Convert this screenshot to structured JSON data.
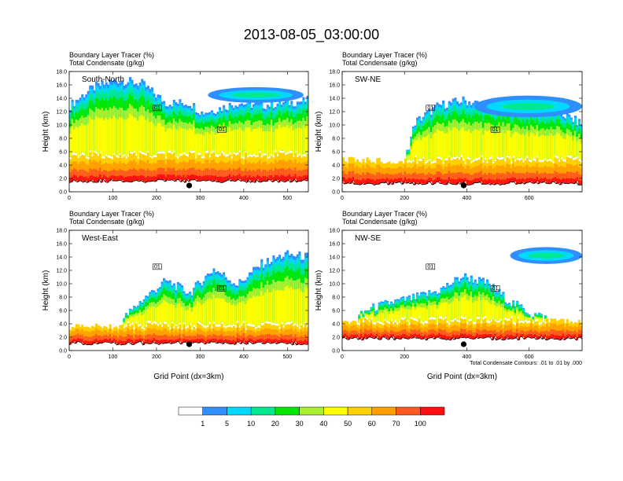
{
  "title": "2013-08-05_03:00:00",
  "chart_data": {
    "type": "heatmap",
    "subtitles": [
      "Boundary Layer Tracer    (%)",
      "Total Condensate    (g/kg)"
    ],
    "ylabel": "Height (km)",
    "xlabel": "Grid Point (dx=3km)",
    "ylim": [
      0,
      18
    ],
    "yticks": [
      "0.0",
      "2.0",
      "4.0",
      "6.0",
      "8.0",
      "10.0",
      "12.0",
      "14.0",
      "16.0",
      "18.0"
    ],
    "contour_note": "Total Condensate Contours: .01 to .01 by .000",
    "contour_label": "01",
    "panels": [
      {
        "name": "South-North",
        "xlim": [
          0,
          548
        ],
        "xticks": [
          0,
          100,
          200,
          300,
          400,
          500
        ],
        "xtick_labels": [
          "0",
          "100",
          "200",
          "300",
          "400",
          "500"
        ],
        "marker_x": 275,
        "show_xlabel": false
      },
      {
        "name": "SW-NE",
        "xlim": [
          0,
          770
        ],
        "xticks": [
          0,
          200,
          400,
          600
        ],
        "xtick_labels": [
          "0",
          "200",
          "400",
          "600"
        ],
        "marker_x": 390,
        "show_xlabel": false
      },
      {
        "name": "West-East",
        "xlim": [
          0,
          548
        ],
        "xticks": [
          0,
          100,
          200,
          300,
          400,
          500
        ],
        "xtick_labels": [
          "0",
          "100",
          "200",
          "300",
          "400",
          "500"
        ],
        "marker_x": 275,
        "show_xlabel": true
      },
      {
        "name": "NW-SE",
        "xlim": [
          0,
          770
        ],
        "xticks": [
          0,
          200,
          400,
          600
        ],
        "xtick_labels": [
          "0",
          "200",
          "400",
          "600"
        ],
        "marker_x": 390,
        "show_xlabel": true
      }
    ],
    "colorbar": {
      "colors": [
        "#ffffff",
        "#2f8fff",
        "#00d9ff",
        "#00e890",
        "#00e800",
        "#a8f030",
        "#ffff00",
        "#ffd000",
        "#ffa000",
        "#ff5a1e",
        "#ff0f0f"
      ],
      "labels": [
        "1",
        "5",
        "10",
        "20",
        "30",
        "40",
        "50",
        "60",
        "70",
        "100"
      ]
    }
  }
}
